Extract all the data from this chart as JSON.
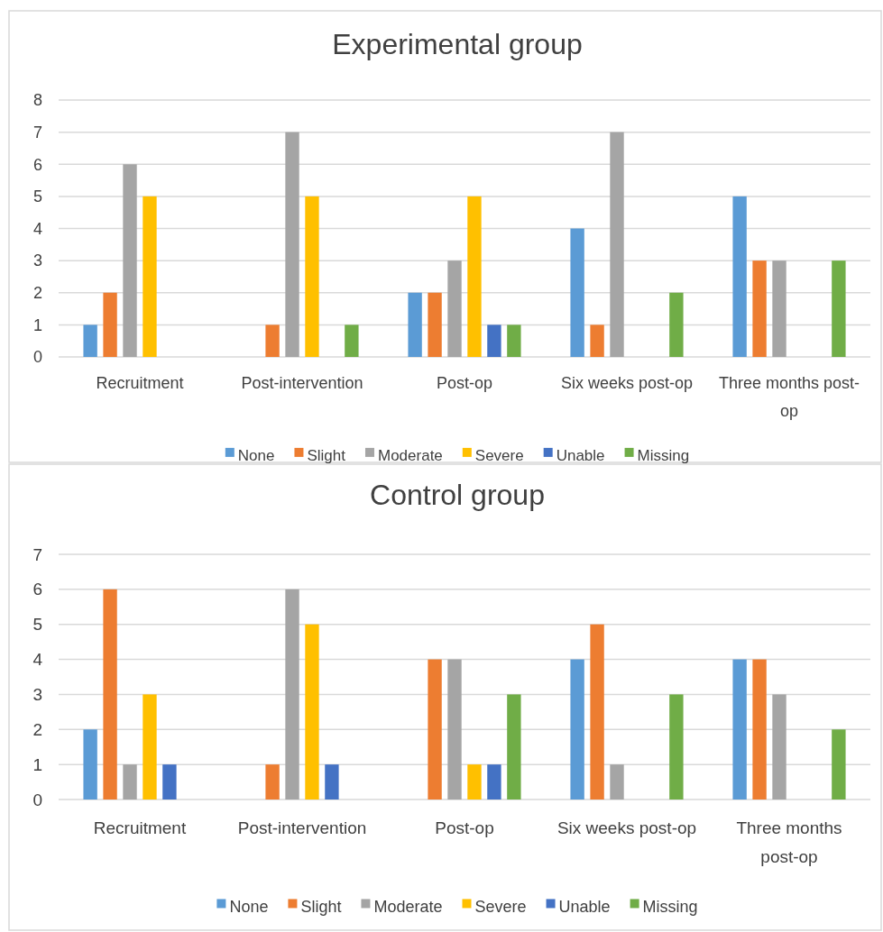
{
  "chart_data": [
    {
      "type": "bar",
      "title": "Experimental group",
      "categories": [
        "Recruitment",
        "Post-intervention",
        "Post-op",
        "Six weeks post-op",
        "Three months post-op"
      ],
      "series": [
        {
          "name": "None",
          "color": "#5b9bd5",
          "values": [
            1,
            0,
            2,
            4,
            5
          ]
        },
        {
          "name": "Slight",
          "color": "#ed7d31",
          "values": [
            2,
            1,
            2,
            1,
            3
          ]
        },
        {
          "name": "Moderate",
          "color": "#a5a5a5",
          "values": [
            6,
            7,
            3,
            7,
            3
          ]
        },
        {
          "name": "Severe",
          "color": "#ffc000",
          "values": [
            5,
            5,
            5,
            0,
            0
          ]
        },
        {
          "name": "Unable",
          "color": "#4472c4",
          "values": [
            0,
            0,
            1,
            0,
            0
          ]
        },
        {
          "name": "Missing",
          "color": "#70ad47",
          "values": [
            0,
            1,
            1,
            2,
            3
          ]
        }
      ],
      "ylim": [
        0,
        8
      ],
      "yticks": [
        0,
        1,
        2,
        3,
        4,
        5,
        6,
        7,
        8
      ],
      "grid": "y",
      "legend": "bottom"
    },
    {
      "type": "bar",
      "title": "Control group",
      "categories": [
        "Recruitment",
        "Post-intervention",
        "Post-op",
        "Six weeks post-op",
        "Three months post-op"
      ],
      "series": [
        {
          "name": "None",
          "color": "#5b9bd5",
          "values": [
            2,
            0,
            0,
            4,
            4
          ]
        },
        {
          "name": "Slight",
          "color": "#ed7d31",
          "values": [
            6,
            1,
            4,
            5,
            4
          ]
        },
        {
          "name": "Moderate",
          "color": "#a5a5a5",
          "values": [
            1,
            6,
            4,
            1,
            3
          ]
        },
        {
          "name": "Severe",
          "color": "#ffc000",
          "values": [
            3,
            5,
            1,
            0,
            0
          ]
        },
        {
          "name": "Unable",
          "color": "#4472c4",
          "values": [
            1,
            1,
            1,
            0,
            0
          ]
        },
        {
          "name": "Missing",
          "color": "#70ad47",
          "values": [
            0,
            0,
            3,
            3,
            2
          ]
        }
      ],
      "ylim": [
        0,
        7
      ],
      "yticks": [
        0,
        1,
        2,
        3,
        4,
        5,
        6,
        7
      ],
      "grid": "y",
      "legend": "bottom"
    }
  ]
}
